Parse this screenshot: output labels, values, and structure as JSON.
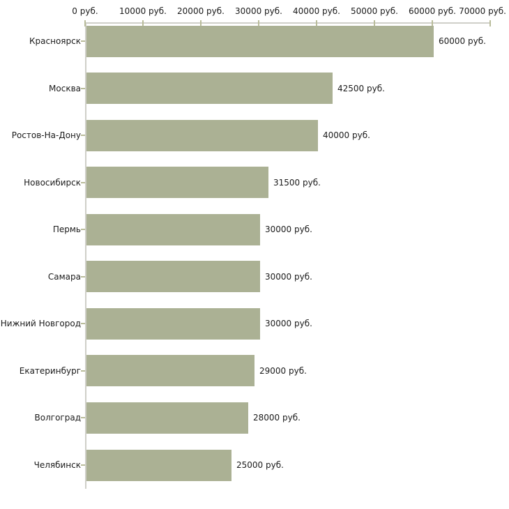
{
  "chart_data": {
    "type": "bar",
    "orientation": "horizontal",
    "title": "",
    "unit": "руб.",
    "categories": [
      "Красноярск",
      "Москва",
      "Ростов-На-Дону",
      "Новосибирск",
      "Пермь",
      "Самара",
      "Нижний Новгород",
      "Екатеринбург",
      "Волгоград",
      "Челябинск"
    ],
    "values": [
      60000,
      42500,
      40000,
      31500,
      30000,
      30000,
      30000,
      29000,
      28000,
      25000
    ],
    "value_labels": [
      "60000 руб.",
      "42500 руб.",
      "40000 руб.",
      "31500 руб.",
      "30000 руб.",
      "30000 руб.",
      "30000 руб.",
      "29000 руб.",
      "28000 руб.",
      "25000 руб."
    ],
    "x_axis": {
      "position": "top",
      "min": 0,
      "max": 70000,
      "tick_step": 10000,
      "tick_values": [
        0,
        10000,
        20000,
        30000,
        40000,
        50000,
        60000,
        70000
      ],
      "tick_labels": [
        "0 руб.",
        "10000 руб.",
        "20000 руб.",
        "30000 руб.",
        "40000 руб.",
        "50000 руб.",
        "60000 руб.",
        "70000 руб."
      ]
    },
    "grid": false,
    "legend": false,
    "colors": {
      "bar": "#abb194",
      "axis_line": "#cfcfc8",
      "tick": "#b9bc9a",
      "text": "#1a1a1a",
      "background": "#ffffff"
    }
  }
}
